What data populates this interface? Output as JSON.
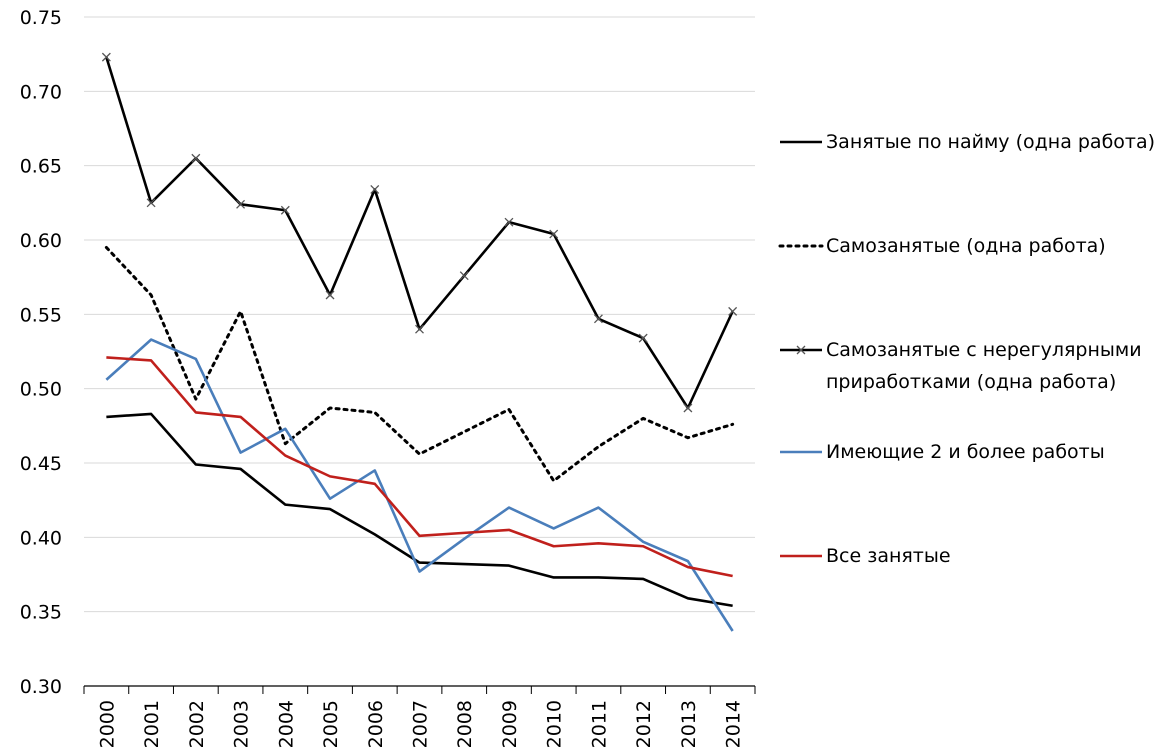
{
  "chart_data": {
    "type": "line",
    "categories": [
      "2000",
      "2001",
      "2002",
      "2003",
      "2004",
      "2005",
      "2006",
      "2007",
      "2008",
      "2009",
      "2010",
      "2011",
      "2012",
      "2013",
      "2014"
    ],
    "series": [
      {
        "name": "Занятые по найму (одна работа)",
        "color": "#000000",
        "dash": "solid",
        "marker": "none",
        "values": [
          0.481,
          0.483,
          0.449,
          0.446,
          0.422,
          0.419,
          0.402,
          0.383,
          0.382,
          0.381,
          0.373,
          0.373,
          0.372,
          0.359,
          0.354
        ]
      },
      {
        "name": "Самозанятые (одна работа)",
        "color": "#000000",
        "dash": "dotted",
        "marker": "none",
        "values": [
          0.595,
          0.563,
          0.493,
          0.552,
          0.463,
          0.487,
          0.484,
          0.456,
          0.471,
          0.486,
          0.438,
          0.461,
          0.48,
          0.467,
          0.476
        ]
      },
      {
        "name": "Самозанятые с нерегулярными приработками (одна работа)",
        "color": "#000000",
        "dash": "solid",
        "marker": "x",
        "values": [
          0.723,
          0.625,
          0.655,
          0.624,
          0.62,
          0.563,
          0.634,
          0.54,
          0.576,
          0.612,
          0.604,
          0.547,
          0.534,
          0.487,
          0.552
        ]
      },
      {
        "name": "Имеющие 2 и более работы",
        "color": "#4a7ebb",
        "dash": "solid",
        "marker": "none",
        "values": [
          0.506,
          0.533,
          0.52,
          0.457,
          0.473,
          0.426,
          0.445,
          0.377,
          0.399,
          0.42,
          0.406,
          0.42,
          0.397,
          0.384,
          0.337
        ]
      },
      {
        "name": "Все занятые",
        "color": "#c0201c",
        "dash": "solid",
        "marker": "none",
        "values": [
          0.521,
          0.519,
          0.484,
          0.481,
          0.455,
          0.441,
          0.436,
          0.401,
          0.403,
          0.405,
          0.394,
          0.396,
          0.394,
          0.38,
          0.374
        ]
      }
    ],
    "ylim": [
      0.3,
      0.75
    ],
    "yticks": [
      {
        "value": 0.3,
        "label": "0.30"
      },
      0.35,
      {
        "value": 0.4,
        "label": "0.40"
      },
      0.45,
      {
        "value": 0.5,
        "label": "0.50"
      },
      0.55,
      {
        "value": 0.6,
        "label": "0.60"
      },
      0.65,
      {
        "value": 0.7,
        "label": "0.70"
      },
      0.75
    ],
    "grid": true,
    "legend": "right"
  }
}
